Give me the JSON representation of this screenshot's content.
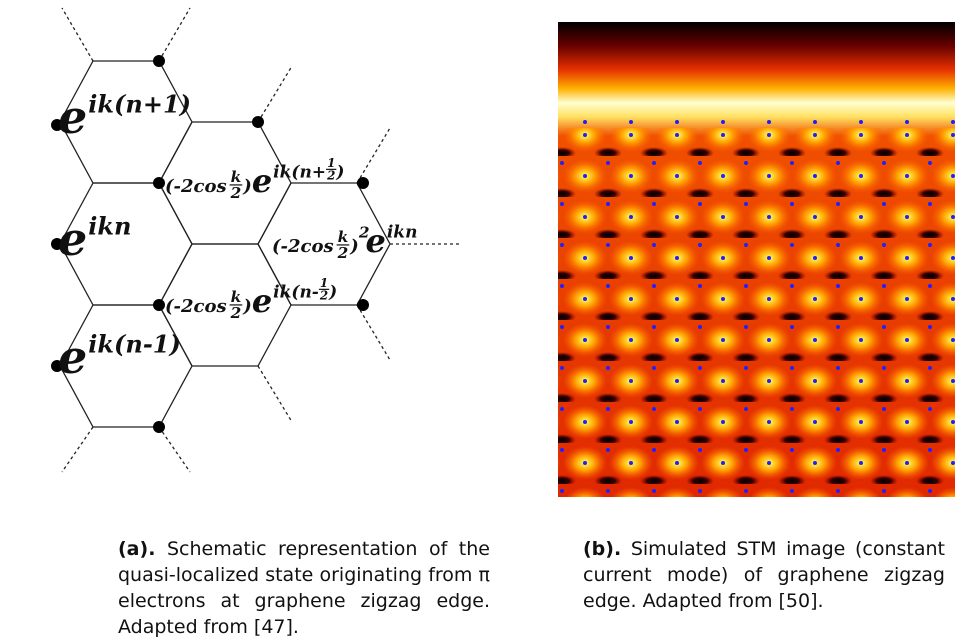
{
  "panels": [
    {
      "label": "(a).",
      "caption": "Schematic representation of the quasi-localized state originating from π electrons at graphene zigzag edge. Adapted from [47].",
      "terms": [
        {
          "base": "e",
          "exponent": [
            "ik(n+1)"
          ]
        },
        {
          "base": "e",
          "exponent": [
            "ikn"
          ]
        },
        {
          "base": "e",
          "exponent": [
            "ik(n-1)"
          ]
        },
        {
          "coefficient": {
            "prefix": "(-2cos",
            "num": "k",
            "den": "2",
            "suffix": ")"
          },
          "base": "e",
          "exponent": [
            "ik(n+",
            {
              "num": "1",
              "den": "2"
            },
            ")"
          ]
        },
        {
          "coefficient": {
            "prefix": "(-2cos",
            "num": "k",
            "den": "2",
            "suffix": ")",
            "power": "2"
          },
          "base": "e",
          "exponent": [
            "ikn"
          ]
        },
        {
          "coefficient": {
            "prefix": "(-2cos",
            "num": "k",
            "den": "2",
            "suffix": ")"
          },
          "base": "e",
          "exponent": [
            "ik(n-",
            {
              "num": "1",
              "den": "2"
            },
            ")"
          ]
        }
      ]
    },
    {
      "label": "(b).",
      "caption": "Simulated STM image (constant current mode) of graphene zigzag edge. Adapted from [50]."
    }
  ]
}
